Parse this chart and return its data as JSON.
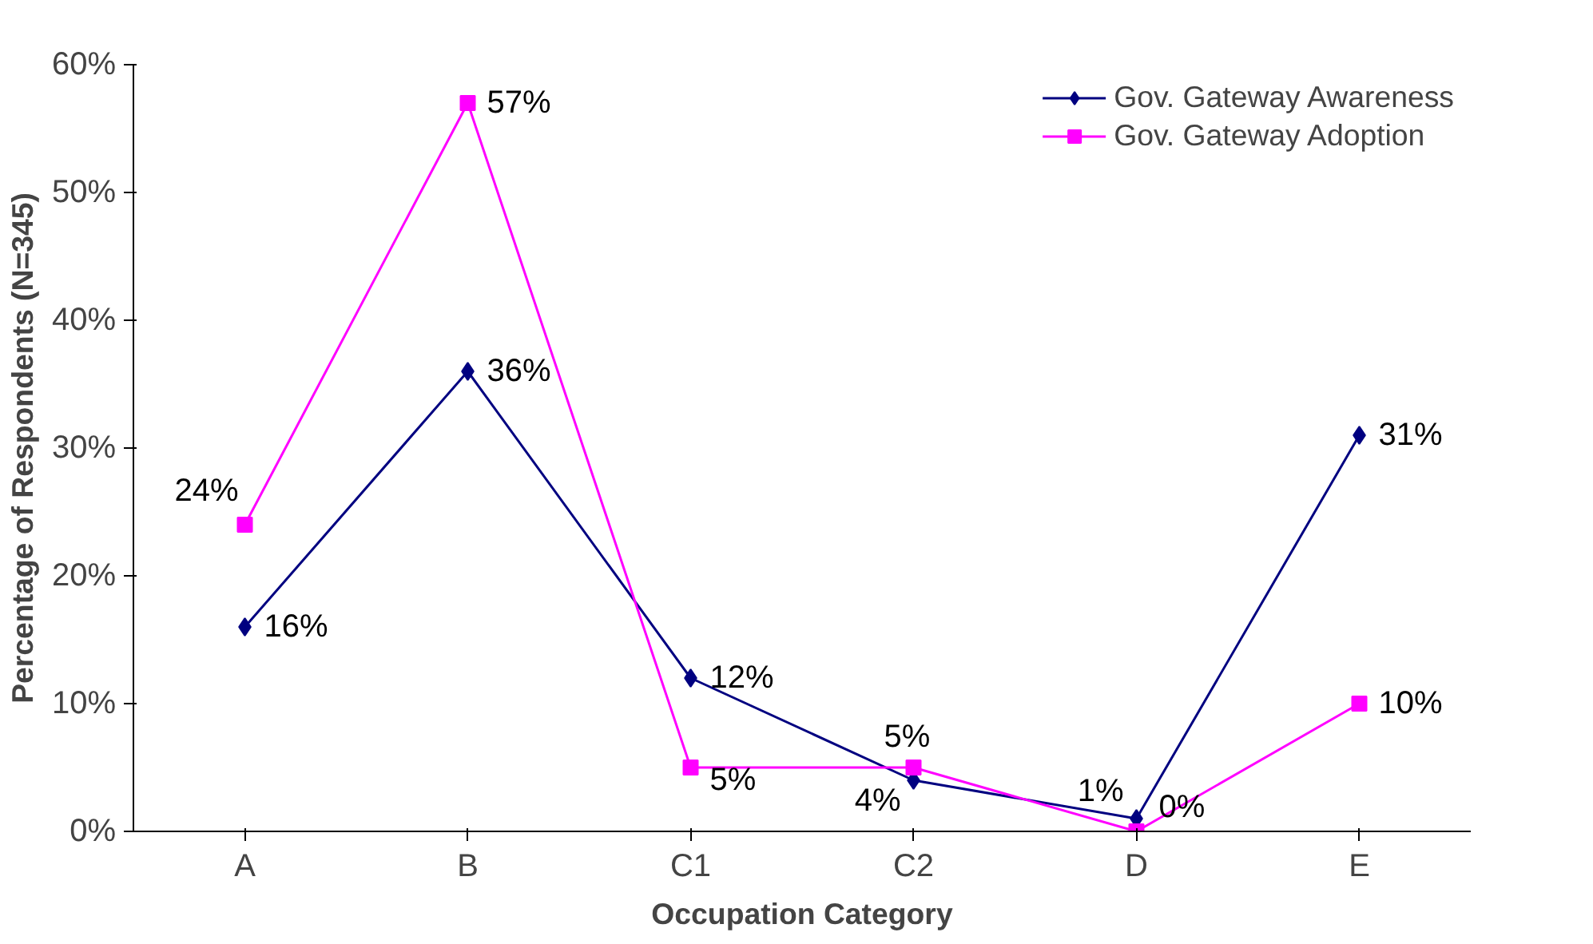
{
  "chart_data": {
    "type": "line",
    "xlabel": "Occupation Category",
    "ylabel": "Percentage of Respondents (N=345)",
    "categories": [
      "A",
      "B",
      "C1",
      "C2",
      "D",
      "E"
    ],
    "series": [
      {
        "name": "Gov. Gateway Awareness",
        "color": "#000080",
        "marker": "diamond",
        "values": [
          16,
          36,
          12,
          4,
          1,
          31
        ],
        "value_labels": [
          "16%",
          "36%",
          "12%",
          "4%",
          "1%",
          "31%"
        ]
      },
      {
        "name": "Gov. Gateway Adoption",
        "color": "#ff00ff",
        "marker": "square",
        "values": [
          24,
          57,
          5,
          5,
          0,
          10
        ],
        "value_labels": [
          "24%",
          "57%",
          "5%",
          "5%",
          "0%",
          "10%"
        ]
      }
    ],
    "ylim": [
      0,
      60
    ],
    "yticks": [
      {
        "value": 0,
        "label": "0%"
      },
      {
        "value": 10,
        "label": "10%"
      },
      {
        "value": 20,
        "label": "20%"
      },
      {
        "value": 30,
        "label": "30%"
      },
      {
        "value": 40,
        "label": "40%"
      },
      {
        "value": 50,
        "label": "50%"
      },
      {
        "value": 60,
        "label": "60%"
      }
    ],
    "grid": false,
    "legend": "top right"
  }
}
